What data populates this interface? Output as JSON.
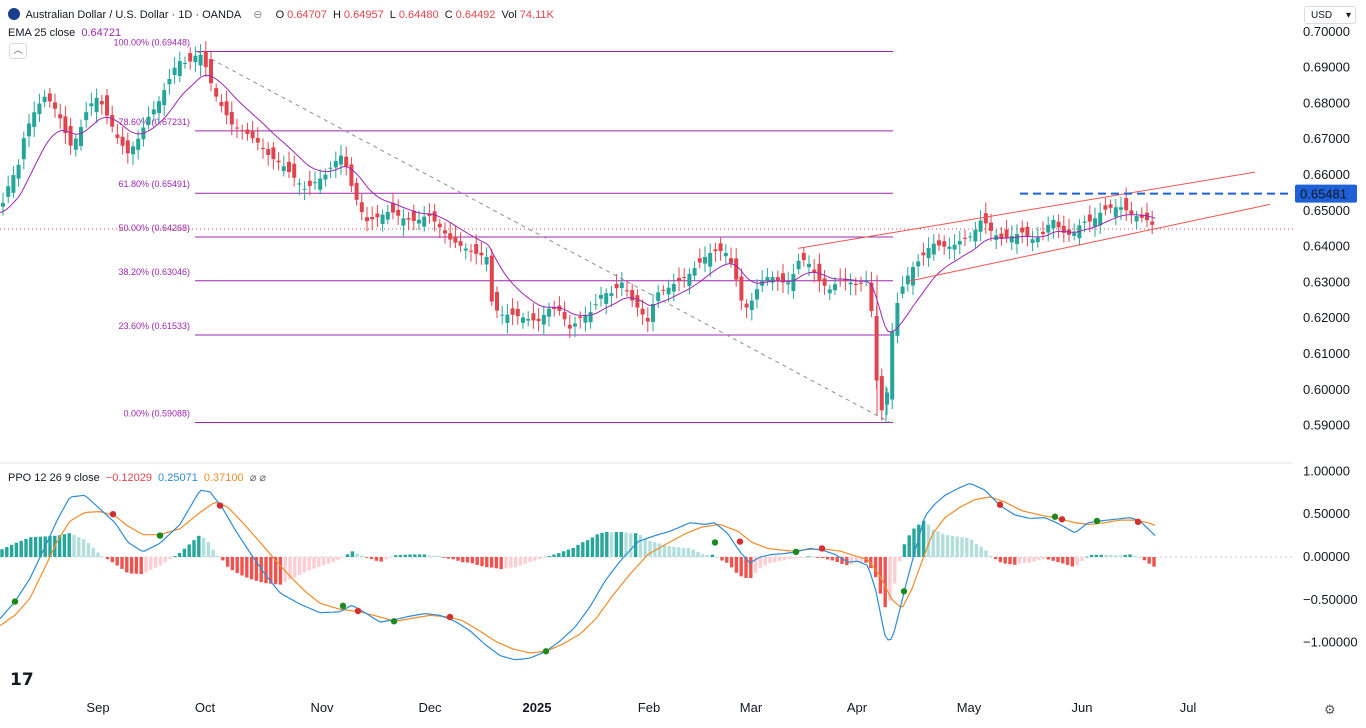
{
  "header": {
    "symbol": "Australian Dollar / U.S. Dollar · 1D · OANDA",
    "open_label": "O",
    "open": "0.64707",
    "high_label": "H",
    "high": "0.64957",
    "low_label": "L",
    "low": "0.64480",
    "close_label": "C",
    "close": "0.64492",
    "vol_label": "Vol",
    "vol": "74.11K",
    "currency": "USD"
  },
  "ema": {
    "label": "EMA 25 close",
    "value": "0.64721"
  },
  "ppo": {
    "label": "PPO 12 26 9 close",
    "v1": "−0.12029",
    "v2": "0.25071",
    "v3": "0.37100",
    "extra": "⌀ ⌀"
  },
  "colors": {
    "up": "#26a69a",
    "down": "#e0454f",
    "ema": "#9c27b0",
    "fib": "#9c27b0",
    "channel": "#ef5350",
    "resistance": "#1e60d6",
    "ppo": "#2f8bd3",
    "signal": "#f08c2a"
  },
  "price_marker": "0.65481",
  "chart_data": [
    {
      "type": "candlestick",
      "title": "Australian Dollar / U.S. Dollar · 1D · OANDA",
      "x_ticks": [
        "Sep",
        "Oct",
        "Nov",
        "Dec",
        "2025",
        "Feb",
        "Mar",
        "Apr",
        "May",
        "Jun",
        "Jul"
      ],
      "y_ticks": [
        "0.70000",
        "0.69000",
        "0.68000",
        "0.67000",
        "0.66000",
        "0.65000",
        "0.64000",
        "0.63000",
        "0.62000",
        "0.61000",
        "0.60000",
        "0.59000"
      ],
      "ylim": [
        0.5885,
        0.7005
      ],
      "fibonacci_levels": [
        {
          "label": "100.00%",
          "value": 0.69448,
          "text": "(0.69448)"
        },
        {
          "label": "78.60%",
          "value": 0.67231,
          "text": "(0.67231)"
        },
        {
          "label": "61.80%",
          "value": 0.65491,
          "text": "(0.65491)"
        },
        {
          "label": "50.00%",
          "value": 0.64268,
          "text": "(0.64268)"
        },
        {
          "label": "38.20%",
          "value": 0.63046,
          "text": "(0.63046)"
        },
        {
          "label": "23.60%",
          "value": 0.61533,
          "text": "(0.61533)"
        },
        {
          "label": "0.00%",
          "value": 0.59088,
          "text": "(0.59088)"
        }
      ],
      "resistance_level": 0.65481,
      "last_price": 0.64492,
      "close_series_knots": [
        [
          0,
          0.6495
        ],
        [
          10,
          0.6585
        ],
        [
          18,
          0.662
        ],
        [
          25,
          0.672
        ],
        [
          35,
          0.678
        ],
        [
          44,
          0.682
        ],
        [
          52,
          0.68
        ],
        [
          60,
          0.676
        ],
        [
          70,
          0.668
        ],
        [
          78,
          0.671
        ],
        [
          88,
          0.679
        ],
        [
          98,
          0.682
        ],
        [
          108,
          0.676
        ],
        [
          118,
          0.67
        ],
        [
          128,
          0.666
        ],
        [
          138,
          0.67
        ],
        [
          148,
          0.676
        ],
        [
          158,
          0.68
        ],
        [
          168,
          0.686
        ],
        [
          178,
          0.692
        ],
        [
          188,
          0.691
        ],
        [
          196,
          0.6935
        ],
        [
          200,
          0.694
        ],
        [
          206,
          0.69
        ],
        [
          214,
          0.683
        ],
        [
          222,
          0.679
        ],
        [
          232,
          0.674
        ],
        [
          245,
          0.672
        ],
        [
          258,
          0.669
        ],
        [
          270,
          0.665
        ],
        [
          282,
          0.663
        ],
        [
          295,
          0.659
        ],
        [
          305,
          0.656
        ],
        [
          315,
          0.658
        ],
        [
          325,
          0.66
        ],
        [
          336,
          0.664
        ],
        [
          343,
          0.666
        ],
        [
          350,
          0.658
        ],
        [
          358,
          0.652
        ],
        [
          366,
          0.647
        ],
        [
          376,
          0.648
        ],
        [
          390,
          0.65
        ],
        [
          402,
          0.648
        ],
        [
          416,
          0.647
        ],
        [
          428,
          0.649
        ],
        [
          438,
          0.646
        ],
        [
          450,
          0.642
        ],
        [
          462,
          0.64
        ],
        [
          476,
          0.638
        ],
        [
          488,
          0.637
        ],
        [
          492,
          0.624
        ],
        [
          500,
          0.621
        ],
        [
          512,
          0.621
        ],
        [
          526,
          0.62
        ],
        [
          538,
          0.619
        ],
        [
          550,
          0.623
        ],
        [
          560,
          0.622
        ],
        [
          570,
          0.617
        ],
        [
          580,
          0.62
        ],
        [
          592,
          0.622
        ],
        [
          602,
          0.627
        ],
        [
          612,
          0.627
        ],
        [
          622,
          0.63
        ],
        [
          632,
          0.625
        ],
        [
          640,
          0.622
        ],
        [
          648,
          0.619
        ],
        [
          656,
          0.627
        ],
        [
          666,
          0.628
        ],
        [
          676,
          0.63
        ],
        [
          688,
          0.632
        ],
        [
          698,
          0.635
        ],
        [
          708,
          0.638
        ],
        [
          718,
          0.639
        ],
        [
          728,
          0.638
        ],
        [
          736,
          0.631
        ],
        [
          744,
          0.622
        ],
        [
          752,
          0.625
        ],
        [
          760,
          0.63
        ],
        [
          770,
          0.632
        ],
        [
          780,
          0.63
        ],
        [
          790,
          0.63
        ],
        [
          800,
          0.637
        ],
        [
          810,
          0.635
        ],
        [
          820,
          0.63
        ],
        [
          830,
          0.628
        ],
        [
          840,
          0.631
        ],
        [
          850,
          0.63
        ],
        [
          858,
          0.629
        ],
        [
          866,
          0.631
        ],
        [
          872,
          0.621
        ],
        [
          877,
          0.601
        ],
        [
          882,
          0.594
        ],
        [
          886,
          0.595
        ],
        [
          890,
          0.612
        ],
        [
          894,
          0.62
        ],
        [
          898,
          0.625
        ],
        [
          904,
          0.63
        ],
        [
          912,
          0.634
        ],
        [
          922,
          0.637
        ],
        [
          932,
          0.641
        ],
        [
          942,
          0.64
        ],
        [
          952,
          0.64
        ],
        [
          962,
          0.642
        ],
        [
          972,
          0.643
        ],
        [
          982,
          0.648
        ],
        [
          992,
          0.644
        ],
        [
          1002,
          0.642
        ],
        [
          1012,
          0.643
        ],
        [
          1022,
          0.644
        ],
        [
          1032,
          0.642
        ],
        [
          1042,
          0.643
        ],
        [
          1052,
          0.648
        ],
        [
          1062,
          0.644
        ],
        [
          1072,
          0.643
        ],
        [
          1082,
          0.647
        ],
        [
          1092,
          0.647
        ],
        [
          1102,
          0.65
        ],
        [
          1112,
          0.651
        ],
        [
          1122,
          0.651
        ],
        [
          1132,
          0.649
        ],
        [
          1142,
          0.648
        ],
        [
          1150,
          0.647
        ],
        [
          1155,
          0.6449
        ]
      ],
      "ema_note": "EMA 25 close",
      "ema_last": 0.64721
    },
    {
      "type": "line",
      "title": "PPO 12 26 9 close",
      "y_ticks": [
        "1.00000",
        "0.50000",
        "0.00000",
        "−0.50000",
        "−1.00000"
      ],
      "ylim": [
        -1.12,
        1.05
      ],
      "ppo_knots": [
        [
          0,
          -0.72
        ],
        [
          15,
          -0.52
        ],
        [
          30,
          -0.25
        ],
        [
          45,
          0.12
        ],
        [
          58,
          0.45
        ],
        [
          70,
          0.7
        ],
        [
          85,
          0.72
        ],
        [
          100,
          0.56
        ],
        [
          115,
          0.4
        ],
        [
          128,
          0.17
        ],
        [
          143,
          0.06
        ],
        [
          160,
          0.16
        ],
        [
          180,
          0.38
        ],
        [
          200,
          0.78
        ],
        [
          210,
          0.76
        ],
        [
          222,
          0.58
        ],
        [
          235,
          0.32
        ],
        [
          250,
          0.05
        ],
        [
          265,
          -0.2
        ],
        [
          280,
          -0.42
        ],
        [
          300,
          -0.55
        ],
        [
          320,
          -0.65
        ],
        [
          340,
          -0.64
        ],
        [
          352,
          -0.56
        ],
        [
          365,
          -0.65
        ],
        [
          380,
          -0.76
        ],
        [
          395,
          -0.73
        ],
        [
          410,
          -0.69
        ],
        [
          425,
          -0.66
        ],
        [
          440,
          -0.68
        ],
        [
          455,
          -0.75
        ],
        [
          470,
          -0.86
        ],
        [
          485,
          -1.02
        ],
        [
          500,
          -1.15
        ],
        [
          515,
          -1.2
        ],
        [
          530,
          -1.18
        ],
        [
          546,
          -1.1
        ],
        [
          560,
          -0.98
        ],
        [
          575,
          -0.82
        ],
        [
          590,
          -0.58
        ],
        [
          605,
          -0.28
        ],
        [
          620,
          -0.05
        ],
        [
          638,
          0.18
        ],
        [
          655,
          0.25
        ],
        [
          670,
          0.3
        ],
        [
          690,
          0.4
        ],
        [
          705,
          0.38
        ],
        [
          715,
          0.4
        ],
        [
          728,
          0.27
        ],
        [
          740,
          0.06
        ],
        [
          750,
          -0.07
        ],
        [
          760,
          0.0
        ],
        [
          772,
          0.03
        ],
        [
          785,
          0.04
        ],
        [
          796,
          0.06
        ],
        [
          810,
          0.1
        ],
        [
          822,
          0.08
        ],
        [
          835,
          0.03
        ],
        [
          848,
          -0.06
        ],
        [
          858,
          -0.05
        ],
        [
          868,
          -0.1
        ],
        [
          876,
          -0.4
        ],
        [
          882,
          -0.75
        ],
        [
          886,
          -0.97
        ],
        [
          892,
          -0.96
        ],
        [
          898,
          -0.7
        ],
        [
          906,
          -0.32
        ],
        [
          915,
          0.07
        ],
        [
          925,
          0.48
        ],
        [
          935,
          0.62
        ],
        [
          945,
          0.72
        ],
        [
          958,
          0.8
        ],
        [
          970,
          0.86
        ],
        [
          985,
          0.78
        ],
        [
          1000,
          0.6
        ],
        [
          1015,
          0.49
        ],
        [
          1030,
          0.45
        ],
        [
          1045,
          0.46
        ],
        [
          1060,
          0.38
        ],
        [
          1075,
          0.28
        ],
        [
          1088,
          0.4
        ],
        [
          1100,
          0.42
        ],
        [
          1115,
          0.44
        ],
        [
          1130,
          0.46
        ],
        [
          1140,
          0.42
        ],
        [
          1148,
          0.33
        ],
        [
          1155,
          0.25
        ]
      ],
      "signal_knots": [
        [
          0,
          -0.8
        ],
        [
          15,
          -0.68
        ],
        [
          30,
          -0.48
        ],
        [
          45,
          -0.12
        ],
        [
          58,
          0.2
        ],
        [
          70,
          0.42
        ],
        [
          85,
          0.52
        ],
        [
          100,
          0.53
        ],
        [
          115,
          0.48
        ],
        [
          128,
          0.36
        ],
        [
          143,
          0.26
        ],
        [
          160,
          0.26
        ],
        [
          180,
          0.33
        ],
        [
          200,
          0.52
        ],
        [
          215,
          0.64
        ],
        [
          228,
          0.58
        ],
        [
          242,
          0.41
        ],
        [
          258,
          0.2
        ],
        [
          272,
          0.01
        ],
        [
          288,
          -0.2
        ],
        [
          305,
          -0.4
        ],
        [
          320,
          -0.54
        ],
        [
          340,
          -0.61
        ],
        [
          360,
          -0.64
        ],
        [
          380,
          -0.7
        ],
        [
          395,
          -0.75
        ],
        [
          410,
          -0.72
        ],
        [
          430,
          -0.68
        ],
        [
          448,
          -0.7
        ],
        [
          462,
          -0.74
        ],
        [
          478,
          -0.85
        ],
        [
          495,
          -0.98
        ],
        [
          512,
          -1.07
        ],
        [
          530,
          -1.12
        ],
        [
          546,
          -1.1
        ],
        [
          562,
          -1.02
        ],
        [
          580,
          -0.9
        ],
        [
          596,
          -0.72
        ],
        [
          612,
          -0.46
        ],
        [
          630,
          -0.2
        ],
        [
          648,
          0.03
        ],
        [
          666,
          0.15
        ],
        [
          685,
          0.27
        ],
        [
          702,
          0.35
        ],
        [
          720,
          0.38
        ],
        [
          738,
          0.3
        ],
        [
          752,
          0.17
        ],
        [
          768,
          0.1
        ],
        [
          790,
          0.07
        ],
        [
          810,
          0.09
        ],
        [
          825,
          0.09
        ],
        [
          840,
          0.07
        ],
        [
          856,
          0.01
        ],
        [
          868,
          -0.03
        ],
        [
          880,
          -0.22
        ],
        [
          892,
          -0.5
        ],
        [
          902,
          -0.6
        ],
        [
          912,
          -0.37
        ],
        [
          922,
          -0.05
        ],
        [
          932,
          0.26
        ],
        [
          945,
          0.46
        ],
        [
          960,
          0.58
        ],
        [
          975,
          0.67
        ],
        [
          990,
          0.7
        ],
        [
          1005,
          0.64
        ],
        [
          1022,
          0.54
        ],
        [
          1040,
          0.49
        ],
        [
          1058,
          0.45
        ],
        [
          1075,
          0.4
        ],
        [
          1090,
          0.38
        ],
        [
          1105,
          0.4
        ],
        [
          1120,
          0.43
        ],
        [
          1135,
          0.43
        ],
        [
          1148,
          0.4
        ],
        [
          1155,
          0.37
        ]
      ],
      "cross_dots": [
        {
          "x": 15,
          "v": -0.52,
          "c": "up"
        },
        {
          "x": 113,
          "v": 0.5,
          "c": "down"
        },
        {
          "x": 160,
          "v": 0.25,
          "c": "up"
        },
        {
          "x": 220,
          "v": 0.6,
          "c": "down"
        },
        {
          "x": 343,
          "v": -0.57,
          "c": "up"
        },
        {
          "x": 358,
          "v": -0.63,
          "c": "down"
        },
        {
          "x": 394,
          "v": -0.75,
          "c": "up"
        },
        {
          "x": 450,
          "v": -0.7,
          "c": "down"
        },
        {
          "x": 546,
          "v": -1.1,
          "c": "up"
        },
        {
          "x": 715,
          "v": 0.17,
          "c": "up"
        },
        {
          "x": 740,
          "v": 0.18,
          "c": "down"
        },
        {
          "x": 796,
          "v": 0.06,
          "c": "up"
        },
        {
          "x": 822,
          "v": 0.1,
          "c": "down"
        },
        {
          "x": 904,
          "v": -0.4,
          "c": "up"
        },
        {
          "x": 1000,
          "v": 0.61,
          "c": "down"
        },
        {
          "x": 1055,
          "v": 0.47,
          "c": "up"
        },
        {
          "x": 1062,
          "v": 0.44,
          "c": "down"
        },
        {
          "x": 1097,
          "v": 0.42,
          "c": "up"
        },
        {
          "x": 1138,
          "v": 0.41,
          "c": "down"
        }
      ]
    }
  ]
}
